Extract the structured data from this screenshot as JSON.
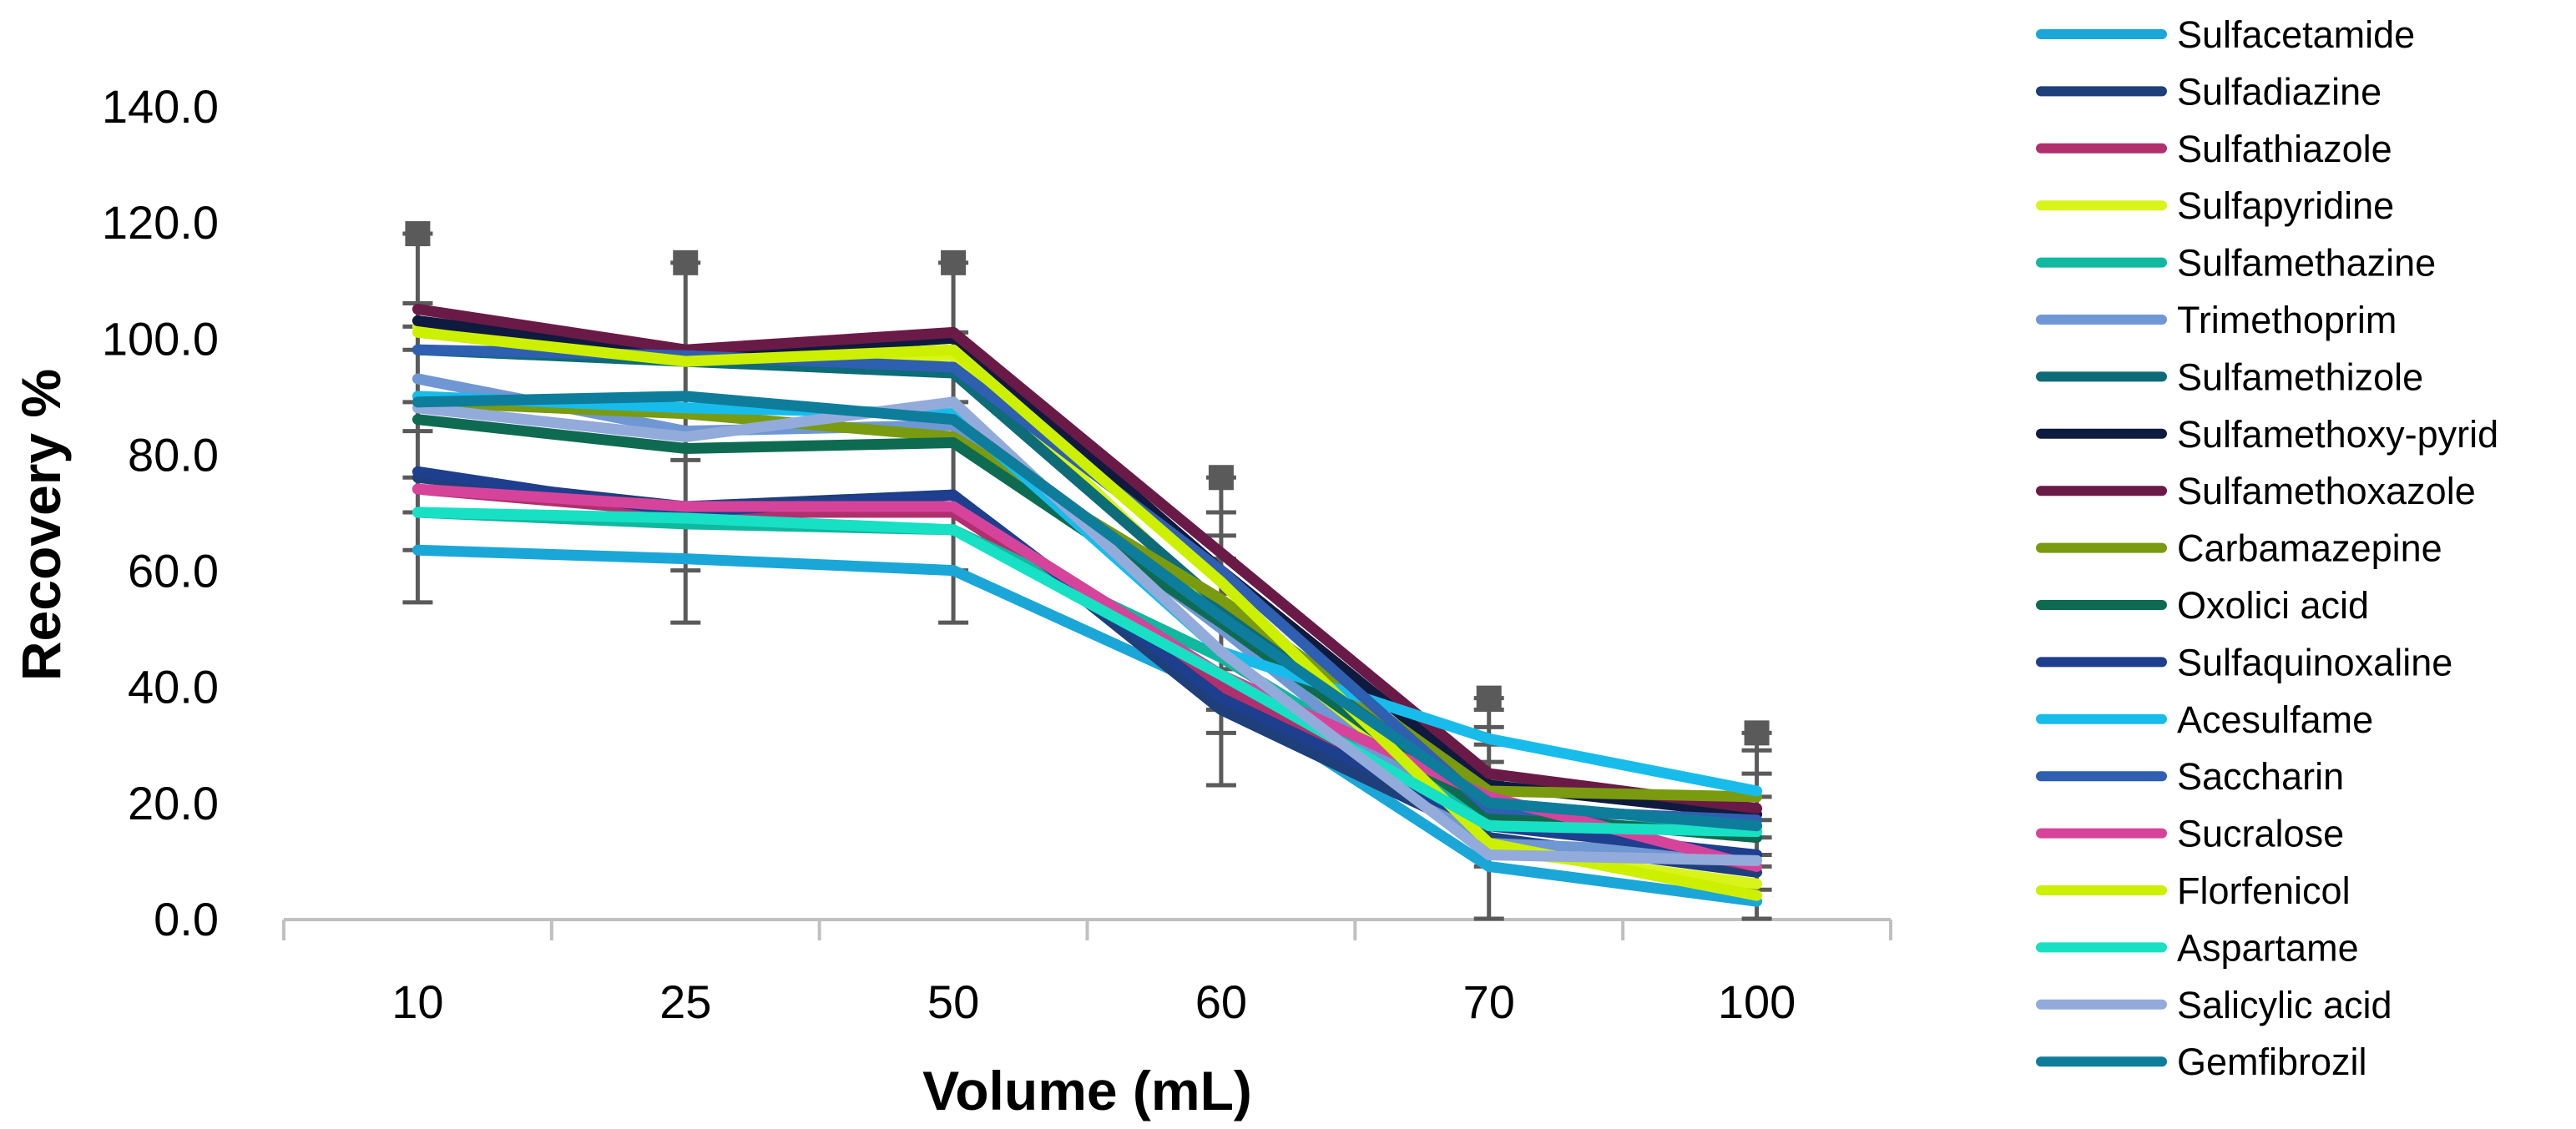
{
  "chart_data": {
    "type": "line",
    "title": "",
    "xlabel": "Volume (mL)",
    "ylabel": "Recovery %",
    "categories": [
      "10",
      "25",
      "50",
      "60",
      "70",
      "100"
    ],
    "yticks": [
      "0.0",
      "20.0",
      "40.0",
      "60.0",
      "80.0",
      "100.0",
      "120.0",
      "140.0"
    ],
    "ylim": [
      0,
      140
    ],
    "grid": false,
    "legend_position": "right",
    "series": [
      {
        "name": "Sulfacetamide",
        "color": "#1AA7D8",
        "values": [
          63.5,
          62,
          60,
          39,
          9,
          3
        ]
      },
      {
        "name": "Sulfadiazine",
        "color": "#1F3F7A",
        "values": [
          76,
          71,
          73,
          36,
          14,
          8
        ]
      },
      {
        "name": "Sulfathiazole",
        "color": "#B0306E",
        "values": [
          74,
          70,
          70,
          40,
          18,
          9
        ]
      },
      {
        "name": "Sulfapyridine",
        "color": "#D9F41A",
        "values": [
          102,
          96,
          97,
          53,
          12,
          6
        ]
      },
      {
        "name": "Sulfamethazine",
        "color": "#10B8A0",
        "values": [
          70,
          68,
          67,
          45,
          17,
          15
        ]
      },
      {
        "name": "Trimethoprim",
        "color": "#6F97D3",
        "values": [
          93,
          84,
          85,
          50,
          13,
          11
        ]
      },
      {
        "name": "Sulfamethizole",
        "color": "#0E6B78",
        "values": [
          98,
          96,
          94,
          54,
          20,
          16
        ]
      },
      {
        "name": "Sulfamethoxy-pyrid",
        "color": "#0E1A3E",
        "values": [
          103,
          97,
          100,
          60,
          23,
          18
        ]
      },
      {
        "name": "Sulfamethoxazole",
        "color": "#6A1A47",
        "values": [
          105,
          98,
          101,
          63,
          25,
          19
        ]
      },
      {
        "name": "Carbamazepine",
        "color": "#7A9A10",
        "values": [
          89,
          87,
          83,
          55,
          22,
          21
        ]
      },
      {
        "name": "Oxolici acid",
        "color": "#0E6B52",
        "values": [
          86,
          81,
          82,
          51,
          18,
          14
        ]
      },
      {
        "name": "Sulfaquinoxaline",
        "color": "#1E3E8E",
        "values": [
          77,
          70,
          73,
          38,
          16,
          11
        ]
      },
      {
        "name": "Acesulfame",
        "color": "#18BCEB",
        "values": [
          90,
          88,
          87,
          46,
          31,
          22
        ]
      },
      {
        "name": "Saccharin",
        "color": "#2E5FB0",
        "values": [
          98,
          97,
          95,
          60,
          19,
          17
        ]
      },
      {
        "name": "Sucralose",
        "color": "#D5449A",
        "values": [
          74,
          71,
          71,
          42,
          21,
          9
        ]
      },
      {
        "name": "Florfenicol",
        "color": "#CCF000",
        "values": [
          101,
          96,
          98,
          58,
          13,
          4
        ]
      },
      {
        "name": "Aspartame",
        "color": "#18E0C4",
        "values": [
          70,
          69,
          67,
          42,
          16,
          15
        ]
      },
      {
        "name": "Salicylic acid",
        "color": "#93ABDB",
        "values": [
          88,
          83,
          89,
          46,
          11,
          10
        ]
      },
      {
        "name": "Gemfibrozil",
        "color": "#0E7D9C",
        "values": [
          89,
          90,
          86,
          52,
          20,
          16
        ]
      }
    ],
    "error_markers": [
      [
        63.5,
        70,
        76,
        84,
        89,
        98,
        102,
        106,
        118
      ],
      [
        60,
        71,
        79,
        84,
        88,
        97,
        113
      ],
      [
        60,
        70,
        82,
        86,
        89,
        94,
        101,
        113
      ],
      [
        32,
        36,
        43,
        56,
        62,
        66,
        70,
        76
      ],
      [
        9,
        13,
        16,
        19,
        22,
        24,
        27,
        30,
        33,
        36,
        38
      ],
      [
        5,
        9,
        11,
        14,
        17,
        21,
        25,
        29,
        32
      ]
    ]
  }
}
